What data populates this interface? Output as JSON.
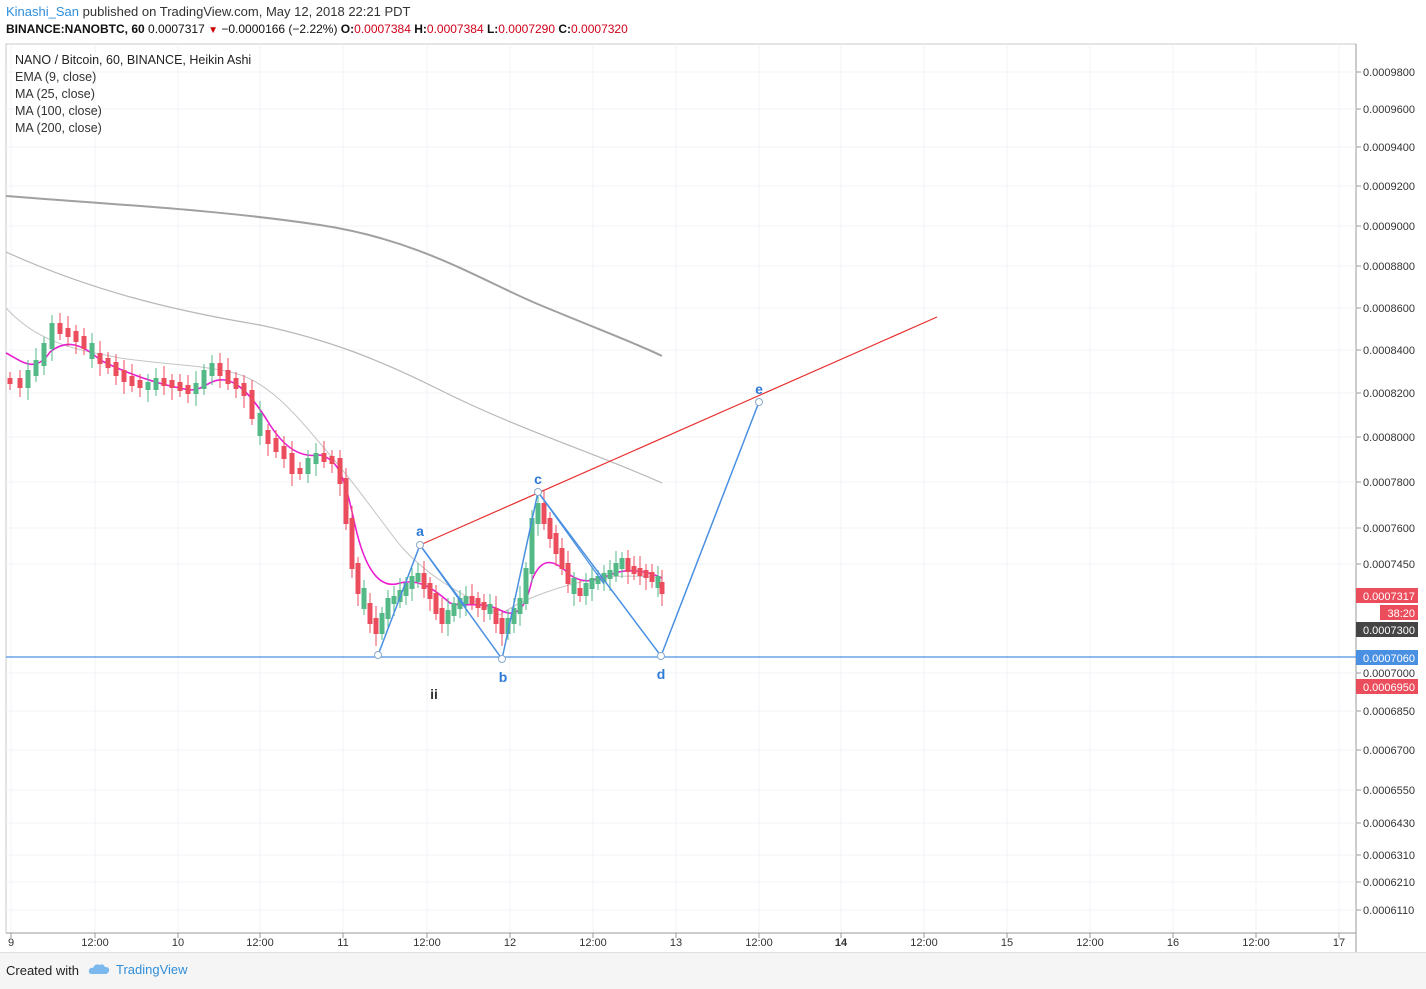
{
  "header": {
    "user": "Kinashi_San",
    "published": "published on TradingView.com, May 12, 2018 22:21 PDT",
    "symbol": "BINANCE:NANOBTC, 60",
    "last": "0.0007317",
    "change": "−0.0000166 (−2.22%)",
    "o_label": "O:",
    "o": "0.0007384",
    "h_label": "H:",
    "h": "0.0007384",
    "l_label": "L:",
    "l": "0.0007290",
    "c_label": "C:",
    "c": "0.0007320"
  },
  "legend": {
    "title": "NANO / Bitcoin, 60, BINANCE, Heikin Ashi",
    "ema": "EMA (9, close)",
    "ma25": "MA (25, close)",
    "ma100": "MA (100, close)",
    "ma200": "MA (200, close)"
  },
  "footer": {
    "created": "Created with",
    "brand": "TradingView"
  },
  "colors": {
    "up": "#53b987",
    "down": "#eb4d5c",
    "ema": "#e91ed1",
    "ma": "#b0b0b0",
    "wave": "#4a90e2",
    "trend": "#e8302f",
    "support": "#4a90e2"
  },
  "chart_data": {
    "type": "candlestick",
    "price_axis": [
      "0.0009800",
      "0.0009600",
      "0.0009400",
      "0.0009200",
      "0.0009000",
      "0.0008800",
      "0.0008600",
      "0.0008400",
      "0.0008200",
      "0.0008000",
      "0.0007800",
      "0.0007600",
      "0.0007450",
      "0.0007000",
      "0.0006850",
      "0.0006700",
      "0.0006550",
      "0.0006430",
      "0.0006310",
      "0.0006210",
      "0.0006110"
    ],
    "price_tags": [
      {
        "text": "0.0007317",
        "color": "#eb4d5c"
      },
      {
        "text": "38:20",
        "color": "#eb4d5c"
      },
      {
        "text": "0.0007300",
        "color": "#444444"
      },
      {
        "text": "0.0007060",
        "color": "#4a90e2"
      },
      {
        "text": "0.0006950",
        "color": "#eb4d5c"
      }
    ],
    "time_axis": [
      "9",
      "12:00",
      "10",
      "12:00",
      "11",
      "12:00",
      "12",
      "12:00",
      "13",
      "12:00",
      "14",
      "12:00",
      "15",
      "12:00",
      "16",
      "12:00",
      "17"
    ],
    "wave_labels": [
      "a",
      "b",
      "c",
      "d",
      "e",
      "ii"
    ],
    "support_level": 0.000706,
    "trendline_label": "",
    "candles": []
  }
}
